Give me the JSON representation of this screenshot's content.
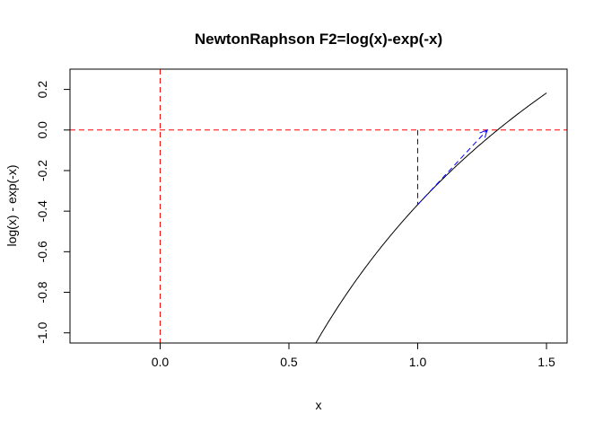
{
  "chart_data": {
    "type": "line",
    "title": "NewtonRaphson F2=log(x)-exp(-x)",
    "xlabel": "x",
    "ylabel": "log(x) - exp(-x)",
    "xlim": [
      -0.35,
      1.58
    ],
    "ylim": [
      -1.05,
      0.3
    ],
    "x_ticks": [
      0.0,
      0.5,
      1.0,
      1.5
    ],
    "x_tick_labels": [
      "0.0",
      "0.5",
      "1.0",
      "1.5"
    ],
    "y_ticks": [
      -1.0,
      -0.8,
      -0.6,
      -0.4,
      -0.2,
      0.0,
      0.2
    ],
    "y_tick_labels": [
      "-1.0",
      "-0.8",
      "-0.6",
      "-0.4",
      "-0.2",
      "0.0",
      "0.2"
    ],
    "grid": false,
    "function": "log(x)-exp(-x)",
    "curve_range": [
      0.6,
      1.5
    ],
    "reference_lines": [
      {
        "orientation": "horizontal",
        "value": 0.0,
        "color": "#ff0000",
        "style": "dashed"
      },
      {
        "orientation": "vertical",
        "value": 0.0,
        "color": "#ff0000",
        "style": "dashed"
      }
    ],
    "newton_steps": {
      "color": "#0000ff",
      "vertical": {
        "x": 1.0,
        "y_from": 0.0,
        "y_to": -0.368
      },
      "tangent_arrow": {
        "from": [
          1.0,
          -0.368
        ],
        "to": [
          1.27,
          0.0
        ]
      }
    },
    "colors": {
      "curve": "#000000",
      "reference": "#ff0000",
      "newton": "#0000ff"
    }
  }
}
